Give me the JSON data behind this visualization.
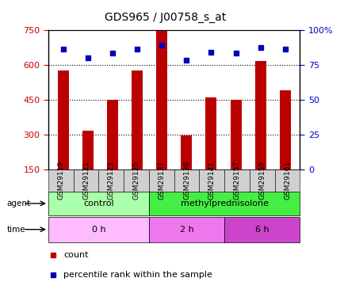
{
  "title": "GDS965 / J00758_s_at",
  "samples": [
    "GSM29119",
    "GSM29121",
    "GSM29123",
    "GSM29125",
    "GSM29137",
    "GSM29138",
    "GSM29141",
    "GSM29157",
    "GSM29159",
    "GSM29161"
  ],
  "counts": [
    575,
    315,
    450,
    575,
    750,
    295,
    460,
    450,
    615,
    490
  ],
  "percentiles": [
    86,
    80,
    83,
    86,
    89,
    78,
    84,
    83,
    87,
    86
  ],
  "ylim_left": [
    150,
    750
  ],
  "yticks_left": [
    150,
    300,
    450,
    600,
    750
  ],
  "ylim_right": [
    0,
    100
  ],
  "yticks_right": [
    0,
    25,
    50,
    75,
    100
  ],
  "ytick_labels_right": [
    "0",
    "25",
    "50",
    "75",
    "100%"
  ],
  "bar_color": "#bb0000",
  "dot_color": "#0000bb",
  "bar_width": 0.45,
  "agent_labels": [
    {
      "text": "control",
      "start": 0,
      "end": 4,
      "color": "#aaffaa"
    },
    {
      "text": "methylprednisolone",
      "start": 4,
      "end": 10,
      "color": "#44ee44"
    }
  ],
  "time_labels": [
    {
      "text": "0 h",
      "start": 0,
      "end": 4,
      "color": "#ffbbff"
    },
    {
      "text": "2 h",
      "start": 4,
      "end": 7,
      "color": "#ee77ee"
    },
    {
      "text": "6 h",
      "start": 7,
      "end": 10,
      "color": "#cc44cc"
    }
  ],
  "legend_count_color": "#bb0000",
  "legend_dot_color": "#0000bb",
  "background_color": "#ffffff",
  "plot_bg_color": "#ffffff",
  "left_tick_color": "#cc0000",
  "right_tick_color": "#0000cc"
}
